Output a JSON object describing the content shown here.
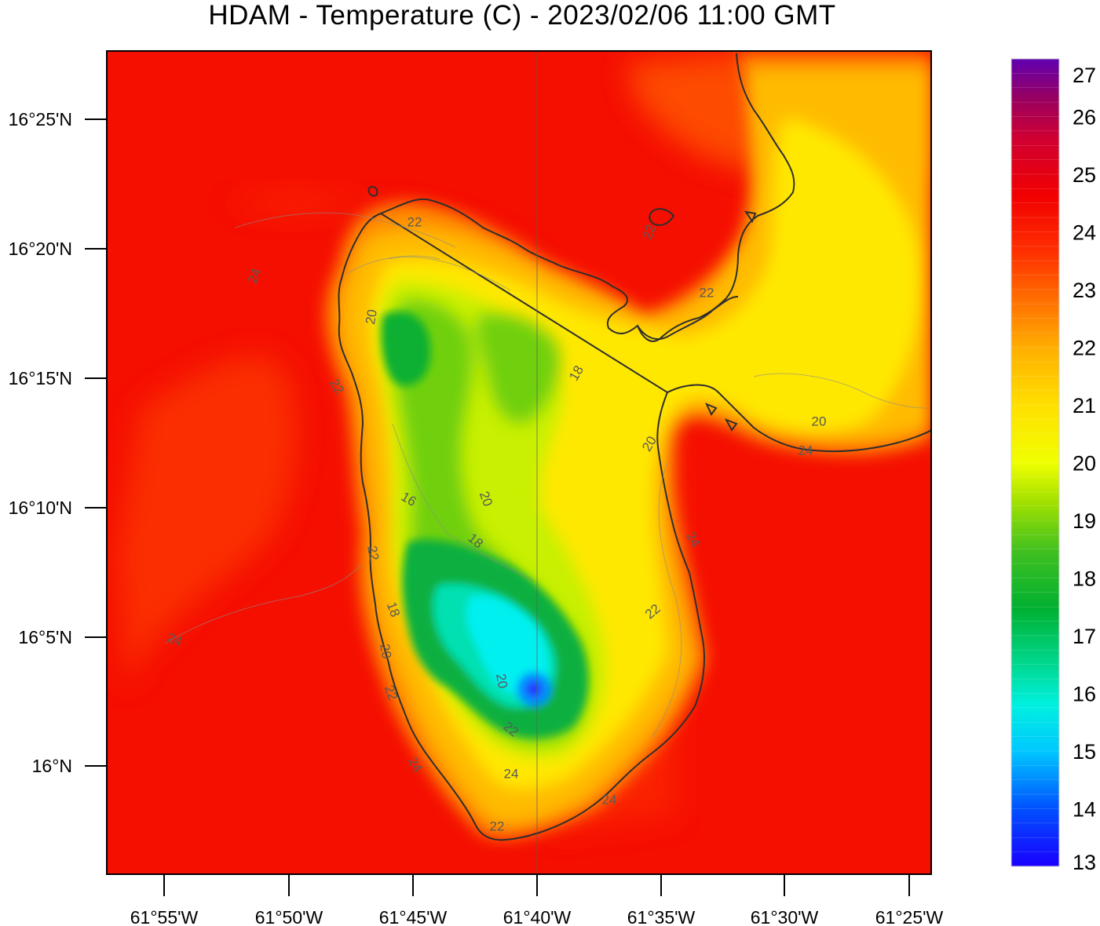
{
  "title": "HDAM - Temperature (C)  -  2023/02/06  11:00 GMT",
  "map": {
    "lat_ticks": [
      "16°25'N",
      "16°20'N",
      "16°15'N",
      "16°10'N",
      "16°5'N",
      "16°N"
    ],
    "lon_ticks": [
      "61°55'W",
      "61°50'W",
      "61°45'W",
      "61°40'W",
      "61°35'W",
      "61°30'W",
      "61°25'W"
    ],
    "contour_labels": [
      "24",
      "22",
      "20",
      "18",
      "16",
      "18",
      "20",
      "22",
      "24",
      "22",
      "20",
      "24",
      "22",
      "20",
      "20",
      "22",
      "24",
      "18",
      "20",
      "22",
      "24",
      "22",
      "22",
      "24",
      "24",
      "22"
    ]
  },
  "colorbar": {
    "labels": [
      "27",
      "26",
      "25",
      "24",
      "23",
      "22",
      "21",
      "20",
      "19",
      "18",
      "17",
      "16",
      "15",
      "14",
      "13"
    ],
    "min": 13,
    "max": 27,
    "units": "C",
    "colors": [
      "#1a00ff",
      "#0050ff",
      "#00c8ff",
      "#00f0e0",
      "#00d890",
      "#00b030",
      "#40c020",
      "#a0e000",
      "#f0ff00",
      "#ffe000",
      "#ffb000",
      "#ff7000",
      "#ff3000",
      "#f20000",
      "#d00030",
      "#9a0060",
      "#6000b0"
    ]
  }
}
